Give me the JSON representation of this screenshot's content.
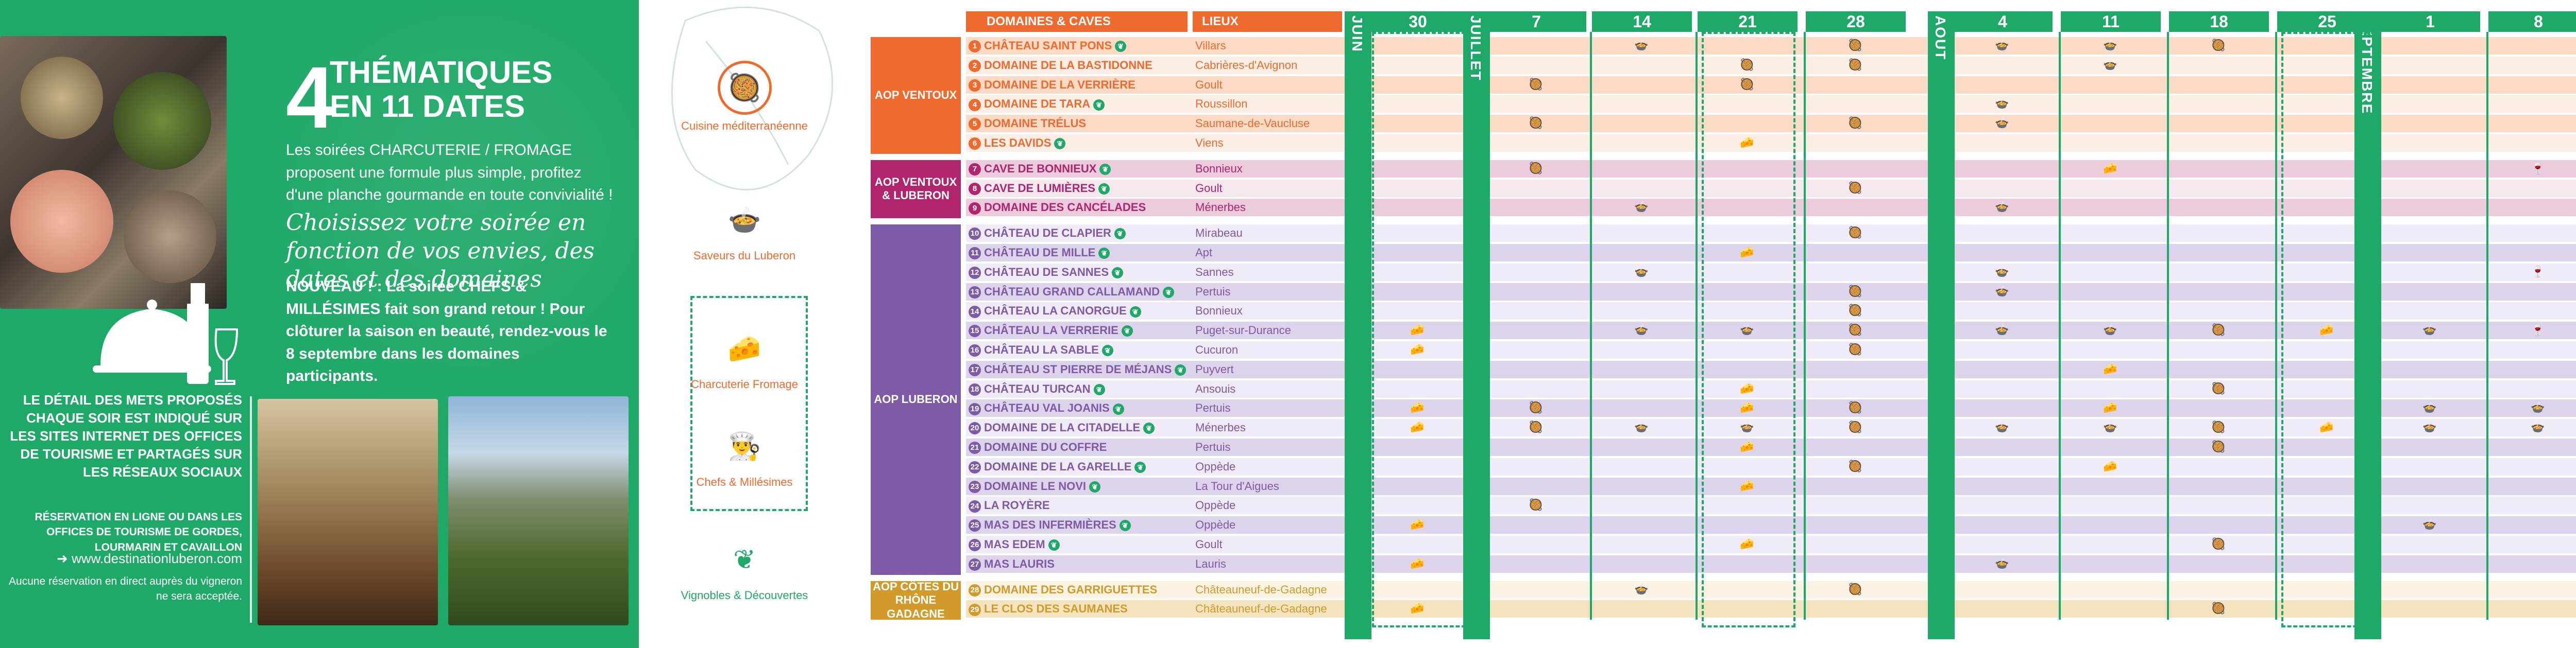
{
  "left_panel": {
    "big_number": "4",
    "title_line1": "THÉMATIQUES",
    "title_line2": "EN 11 DATES",
    "para1": "Les soirées CHARCUTERIE / FROMAGE proposent une formule plus simple, profitez d'une planche gourmande en toute convivialité !",
    "script_text": "Choisissez votre soirée en fonction de vos envies, des dates et des domaines",
    "nouveau": "NOUVEAU ! : La soirée CHEFS & MILLÉSIMES fait son grand retour ! Pour clôturer la saison en beauté, rendez-vous le 8 septembre dans les domaines participants.",
    "detail": "LE DÉTAIL DES METS PROPOSÉS CHAQUE SOIR EST INDIQUÉ SUR LES SITES INTERNET DES OFFICES DE TOURISME ET PARTAGÉS SUR LES RÉSEAUX SOCIAUX",
    "reservation": "RÉSERVATION EN LIGNE OU DANS LES OFFICES DE TOURISME DE GORDES, LOURMARIN ET CAVAILLON",
    "website": "www.destinationluberon.com",
    "no_reservation": "Aucune réservation en direct auprès du vigneron ne sera acceptée."
  },
  "legend": {
    "items": [
      {
        "label": "Cuisine méditerranéenne",
        "icon": "paella-icon",
        "color": "#ef6a2e"
      },
      {
        "label": "Saveurs du Luberon",
        "icon": "bowl-icon",
        "color": "#ef6a2e"
      },
      {
        "label": "Charcuterie Fromage",
        "icon": "cheese-board-icon",
        "color": "#ef6a2e"
      },
      {
        "label": "Chefs & Millésimes",
        "icon": "chef-hat-icon",
        "color": "#ef6a2e"
      },
      {
        "label": "Vignobles & Découvertes",
        "icon": "vine-leaf-icon",
        "color": "#1fa968"
      }
    ]
  },
  "table": {
    "header_domaines": "DOMAINES & CAVES",
    "header_lieux": "LIEUX",
    "months": [
      "JUIN",
      "JUILLET",
      "AOUT",
      "SEPTEMBRE"
    ],
    "dates": [
      "30",
      "7",
      "14",
      "21",
      "28",
      "4",
      "11",
      "18",
      "25",
      "1",
      "8"
    ],
    "groups": [
      {
        "label": "AOP VENTOUX",
        "color": "#ef6a2e",
        "rowbg": "#fbd9c5"
      },
      {
        "label": "AOP VENTOUX & LUBERON",
        "color": "#b0256e",
        "rowbg": "#eccbdb"
      },
      {
        "label": "AOP LUBERON",
        "color": "#7d5ba6",
        "rowbg": "#ddd3ea"
      },
      {
        "label": "AOP CÔTES DU RHÔNE GADAGNE",
        "color": "#d19a2a",
        "rowbg": "#f3e3bf"
      }
    ],
    "rows": [
      {
        "n": "1",
        "name": "CHÂTEAU SAINT PONS",
        "village": "Villars",
        "vd": true,
        "g": 0,
        "marks": [
          [
            3,
            "s"
          ],
          [
            5,
            "c"
          ],
          [
            6,
            "s"
          ],
          [
            7,
            "s"
          ],
          [
            8,
            "c"
          ]
        ]
      },
      {
        "n": "2",
        "name": "DOMAINE DE LA BASTIDONNE",
        "village": "Cabrières-d'Avignon",
        "vd": false,
        "g": 0,
        "marks": [
          [
            4,
            "c"
          ],
          [
            5,
            "c"
          ],
          [
            7,
            "s"
          ]
        ]
      },
      {
        "n": "3",
        "name": "DOMAINE DE LA VERRIÈRE",
        "village": "Goult",
        "vd": false,
        "g": 0,
        "marks": [
          [
            2,
            "c"
          ],
          [
            4,
            "c"
          ]
        ]
      },
      {
        "n": "4",
        "name": "DOMAINE DE TARA",
        "village": "Roussillon",
        "vd": true,
        "g": 0,
        "marks": [
          [
            6,
            "s"
          ]
        ]
      },
      {
        "n": "5",
        "name": "DOMAINE TRÉLUS",
        "village": "Saumane-de-Vaucluse",
        "vd": false,
        "g": 0,
        "marks": [
          [
            2,
            "c"
          ],
          [
            5,
            "c"
          ],
          [
            6,
            "s"
          ]
        ]
      },
      {
        "n": "6",
        "name": "LES DAVIDS",
        "village": "Viens",
        "vd": true,
        "g": 0,
        "marks": [
          [
            4,
            "f"
          ]
        ]
      },
      {
        "n": "7",
        "name": "CAVE DE BONNIEUX",
        "village": "Bonnieux",
        "vd": true,
        "g": 1,
        "marks": [
          [
            2,
            "c"
          ],
          [
            7,
            "f"
          ],
          [
            11,
            "h"
          ]
        ]
      },
      {
        "n": "8",
        "name": "CAVE DE LUMIÈRES",
        "village": "Goult",
        "vd": true,
        "g": 1,
        "marks": [
          [
            5,
            "c"
          ]
        ]
      },
      {
        "n": "9",
        "name": "DOMAINE DES CANCÉLADES",
        "village": "Ménerbes",
        "vd": false,
        "g": 1,
        "marks": [
          [
            3,
            "s"
          ],
          [
            6,
            "s"
          ]
        ]
      },
      {
        "n": "10",
        "name": "CHÂTEAU DE CLAPIER",
        "village": "Mirabeau",
        "vd": true,
        "g": 2,
        "marks": [
          [
            5,
            "c"
          ]
        ]
      },
      {
        "n": "11",
        "name": "CHÂTEAU DE MILLE",
        "village": "Apt",
        "vd": true,
        "g": 2,
        "marks": [
          [
            4,
            "f"
          ]
        ]
      },
      {
        "n": "12",
        "name": "CHÂTEAU DE SANNES",
        "village": "Sannes",
        "vd": true,
        "g": 2,
        "marks": [
          [
            3,
            "s"
          ],
          [
            6,
            "s"
          ],
          [
            11,
            "h"
          ]
        ]
      },
      {
        "n": "13",
        "name": "CHÂTEAU GRAND CALLAMAND",
        "village": "Pertuis",
        "vd": true,
        "g": 2,
        "marks": [
          [
            5,
            "c"
          ],
          [
            6,
            "s"
          ]
        ]
      },
      {
        "n": "14",
        "name": "CHÂTEAU LA CANORGUE",
        "village": "Bonnieux",
        "vd": true,
        "g": 2,
        "marks": [
          [
            5,
            "c"
          ]
        ]
      },
      {
        "n": "15",
        "name": "CHÂTEAU LA VERRERIE",
        "village": "Puget-sur-Durance",
        "vd": true,
        "g": 2,
        "marks": [
          [
            1,
            "f"
          ],
          [
            3,
            "s"
          ],
          [
            4,
            "s"
          ],
          [
            5,
            "c"
          ],
          [
            6,
            "s"
          ],
          [
            7,
            "s"
          ],
          [
            8,
            "c"
          ],
          [
            9,
            "f"
          ],
          [
            10,
            "s"
          ],
          [
            11,
            "h"
          ]
        ]
      },
      {
        "n": "16",
        "name": "CHÂTEAU LA SABLE",
        "village": "Cucuron",
        "vd": true,
        "g": 2,
        "marks": [
          [
            1,
            "f"
          ],
          [
            5,
            "c"
          ]
        ]
      },
      {
        "n": "17",
        "name": "CHÂTEAU ST PIERRE DE MÉJANS",
        "village": "Puyvert",
        "vd": true,
        "g": 2,
        "marks": [
          [
            7,
            "f"
          ]
        ]
      },
      {
        "n": "18",
        "name": "CHÂTEAU TURCAN",
        "village": "Ansouis",
        "vd": true,
        "g": 2,
        "marks": [
          [
            4,
            "f"
          ],
          [
            8,
            "c"
          ]
        ]
      },
      {
        "n": "19",
        "name": "CHÂTEAU VAL JOANIS",
        "village": "Pertuis",
        "vd": true,
        "g": 2,
        "marks": [
          [
            1,
            "f"
          ],
          [
            2,
            "c"
          ],
          [
            4,
            "f"
          ],
          [
            5,
            "c"
          ],
          [
            7,
            "f"
          ],
          [
            10,
            "s"
          ],
          [
            11,
            "s"
          ]
        ]
      },
      {
        "n": "20",
        "name": "DOMAINE DE LA CITADELLE",
        "village": "Ménerbes",
        "vd": true,
        "g": 2,
        "marks": [
          [
            1,
            "f"
          ],
          [
            2,
            "c"
          ],
          [
            3,
            "s"
          ],
          [
            4,
            "s"
          ],
          [
            5,
            "c"
          ],
          [
            6,
            "s"
          ],
          [
            7,
            "s"
          ],
          [
            8,
            "c"
          ],
          [
            9,
            "f"
          ],
          [
            10,
            "s"
          ],
          [
            11,
            "s"
          ]
        ]
      },
      {
        "n": "21",
        "name": "DOMAINE DU COFFRE",
        "village": "Pertuis",
        "vd": false,
        "g": 2,
        "marks": [
          [
            4,
            "f"
          ],
          [
            8,
            "c"
          ]
        ]
      },
      {
        "n": "22",
        "name": "DOMAINE DE LA GARELLE",
        "village": "Oppède",
        "vd": true,
        "g": 2,
        "marks": [
          [
            5,
            "c"
          ],
          [
            7,
            "f"
          ]
        ]
      },
      {
        "n": "23",
        "name": "DOMAINE LE NOVI",
        "village": "La Tour d'Aigues",
        "vd": true,
        "g": 2,
        "marks": [
          [
            4,
            "f"
          ]
        ]
      },
      {
        "n": "24",
        "name": "LA ROYÈRE",
        "village": "Oppède",
        "vd": false,
        "g": 2,
        "marks": [
          [
            2,
            "c"
          ]
        ]
      },
      {
        "n": "25",
        "name": "MAS DES INFERMIÈRES",
        "village": "Oppède",
        "vd": true,
        "g": 2,
        "marks": [
          [
            1,
            "f"
          ],
          [
            10,
            "s"
          ]
        ]
      },
      {
        "n": "26",
        "name": "MAS EDEM",
        "village": "Goult",
        "vd": true,
        "g": 2,
        "marks": [
          [
            4,
            "f"
          ],
          [
            8,
            "c"
          ]
        ]
      },
      {
        "n": "27",
        "name": "MAS LAURIS",
        "village": "Lauris",
        "vd": false,
        "g": 2,
        "marks": [
          [
            1,
            "f"
          ],
          [
            6,
            "s"
          ]
        ]
      },
      {
        "n": "28",
        "name": "DOMAINE DES GARRIGUETTES",
        "village": "Châteauneuf-de-Gadagne",
        "vd": false,
        "g": 3,
        "marks": [
          [
            3,
            "s"
          ],
          [
            5,
            "c"
          ]
        ]
      },
      {
        "n": "29",
        "name": "LE CLOS DES SAUMANES",
        "village": "Châteauneuf-de-Gadagne",
        "vd": false,
        "g": 3,
        "marks": [
          [
            1,
            "f"
          ],
          [
            8,
            "c"
          ]
        ]
      }
    ]
  }
}
